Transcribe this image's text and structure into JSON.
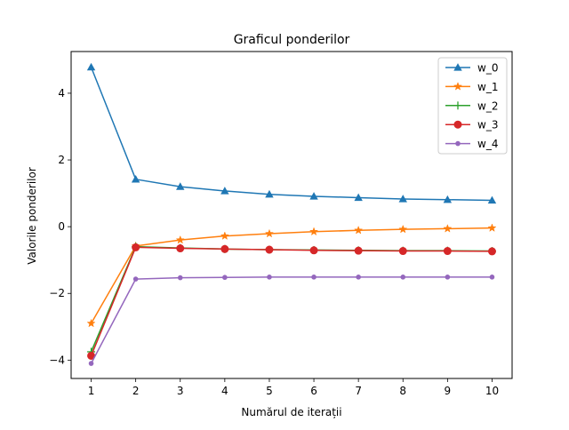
{
  "chart_data": {
    "type": "line",
    "title": "Graficul ponderilor",
    "xlabel": "Numărul de iterații",
    "ylabel": "Valorile ponderilor",
    "x": [
      1,
      2,
      3,
      4,
      5,
      6,
      7,
      8,
      9,
      10
    ],
    "xticks": [
      "1",
      "2",
      "3",
      "4",
      "5",
      "6",
      "7",
      "8",
      "9",
      "10"
    ],
    "yticks": [
      -4,
      -2,
      0,
      2,
      4
    ],
    "ytick_labels": [
      "−4",
      "−2",
      "0",
      "2",
      "4"
    ],
    "xlim": [
      0.55,
      10.45
    ],
    "ylim": [
      -4.55,
      5.25
    ],
    "grid": false,
    "legend_position": "top-right",
    "series": [
      {
        "name": "w_0",
        "color": "#1f77b4",
        "marker": "triangle",
        "values": [
          4.78,
          1.42,
          1.2,
          1.07,
          0.97,
          0.91,
          0.87,
          0.83,
          0.81,
          0.79
        ]
      },
      {
        "name": "w_1",
        "color": "#ff7f0e",
        "marker": "star",
        "values": [
          -2.9,
          -0.58,
          -0.4,
          -0.28,
          -0.21,
          -0.15,
          -0.11,
          -0.08,
          -0.06,
          -0.04
        ]
      },
      {
        "name": "w_2",
        "color": "#2ca02c",
        "marker": "plus",
        "values": [
          -3.75,
          -0.6,
          -0.64,
          -0.67,
          -0.69,
          -0.7,
          -0.71,
          -0.72,
          -0.72,
          -0.73
        ]
      },
      {
        "name": "w_3",
        "color": "#d62728",
        "marker": "circle",
        "values": [
          -3.87,
          -0.62,
          -0.65,
          -0.67,
          -0.69,
          -0.71,
          -0.72,
          -0.73,
          -0.73,
          -0.74
        ]
      },
      {
        "name": "w_4",
        "color": "#9467bd",
        "marker": "dot",
        "values": [
          -4.1,
          -1.57,
          -1.53,
          -1.52,
          -1.51,
          -1.51,
          -1.51,
          -1.51,
          -1.51,
          -1.51
        ]
      }
    ]
  }
}
